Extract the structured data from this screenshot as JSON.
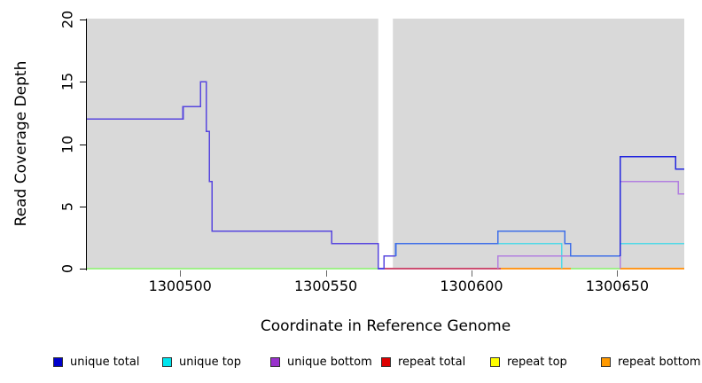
{
  "chart_data": {
    "type": "line",
    "subtype": "step-coverage",
    "title": "",
    "xlabel": "Coordinate in Reference Genome",
    "ylabel": "Read Coverage Depth",
    "xlim": [
      1300468,
      1300673
    ],
    "ylim": [
      0,
      20
    ],
    "x_ticks": [
      1300500,
      1300550,
      1300600,
      1300650
    ],
    "y_ticks": [
      0,
      5,
      10,
      15,
      20
    ],
    "grid": false,
    "plot_bg": "#d9d9d9",
    "gap_region": {
      "x_start": 1300568,
      "x_end": 1300573,
      "color": "#ffffff"
    },
    "series": [
      {
        "name": "repeat top",
        "runs": [
          {
            "color": "#ffff33",
            "opacity": 1,
            "steps": [
              [
                1300468,
                0
              ],
              [
                1300673,
                0
              ]
            ]
          }
        ]
      },
      {
        "name": "repeat total",
        "runs": [
          {
            "color": "#cc4d70",
            "opacity": 1,
            "steps": [
              [
                1300570,
                0
              ],
              [
                1300610,
                0
              ]
            ]
          }
        ]
      },
      {
        "name": "repeat bottom",
        "runs": [
          {
            "color": "#ff981f",
            "opacity": 1,
            "steps": [
              [
                1300610,
                0
              ],
              [
                1300634,
                0
              ]
            ]
          },
          {
            "color": "#ff981f",
            "opacity": 1,
            "steps": [
              [
                1300651,
                0
              ],
              [
                1300673,
                0
              ]
            ]
          }
        ]
      },
      {
        "name": "unique top",
        "runs": [
          {
            "color": "#40e0e0",
            "opacity": 0.5,
            "steps": [
              [
                1300468,
                0
              ],
              [
                1300568,
                0
              ]
            ]
          },
          {
            "color": "#40e0e0",
            "opacity": 0.5,
            "steps": [
              [
                1300634,
                0
              ],
              [
                1300651,
                0
              ]
            ]
          },
          {
            "color": "#4fd9e7",
            "opacity": 1,
            "steps": [
              [
                1300574,
                2
              ],
              [
                1300631,
                0
              ]
            ]
          },
          {
            "color": "#4fd9e7",
            "opacity": 1,
            "steps": [
              [
                1300651,
                0
              ],
              [
                1300651,
                2
              ],
              [
                1300673,
                2
              ]
            ]
          }
        ]
      },
      {
        "name": "unique bottom",
        "runs": [
          {
            "color": "#b27fe0",
            "opacity": 1,
            "steps": [
              [
                1300609,
                0
              ],
              [
                1300609,
                1
              ],
              [
                1300634,
                1
              ]
            ]
          },
          {
            "color": "#b27fe0",
            "opacity": 1,
            "steps": [
              [
                1300651,
                0
              ],
              [
                1300651,
                7
              ],
              [
                1300671,
                6
              ],
              [
                1300673,
                6
              ]
            ]
          }
        ]
      },
      {
        "name": "unique total",
        "runs": [
          {
            "color": "#5746de",
            "opacity": 1,
            "steps": [
              [
                1300468,
                12
              ],
              [
                1300501,
                13
              ],
              [
                1300507,
                15
              ],
              [
                1300509,
                11
              ],
              [
                1300510,
                7
              ],
              [
                1300511,
                3
              ],
              [
                1300552,
                2
              ],
              [
                1300568,
                0
              ],
              [
                1300570,
                1
              ],
              [
                1300574,
                1
              ]
            ]
          },
          {
            "color": "#3f6fe8",
            "opacity": 1,
            "steps": [
              [
                1300574,
                1
              ],
              [
                1300574,
                2
              ],
              [
                1300609,
                3
              ],
              [
                1300632,
                2
              ],
              [
                1300634,
                1
              ],
              [
                1300651,
                1
              ]
            ]
          },
          {
            "color": "#2226de",
            "opacity": 1,
            "steps": [
              [
                1300651,
                1
              ],
              [
                1300651,
                9
              ],
              [
                1300670,
                8
              ],
              [
                1300673,
                8
              ]
            ]
          }
        ]
      }
    ]
  },
  "legend": {
    "items": [
      {
        "label": "unique total",
        "color": "#0000cc"
      },
      {
        "label": "unique top",
        "color": "#00e5ee"
      },
      {
        "label": "unique bottom",
        "color": "#9932cc"
      },
      {
        "label": "repeat total",
        "color": "#dd0000"
      },
      {
        "label": "repeat top",
        "color": "#ffff00"
      },
      {
        "label": "repeat bottom",
        "color": "#ff9900"
      }
    ]
  },
  "axes": {
    "x_label": "Coordinate in Reference Genome",
    "y_label": "Read Coverage Depth"
  }
}
